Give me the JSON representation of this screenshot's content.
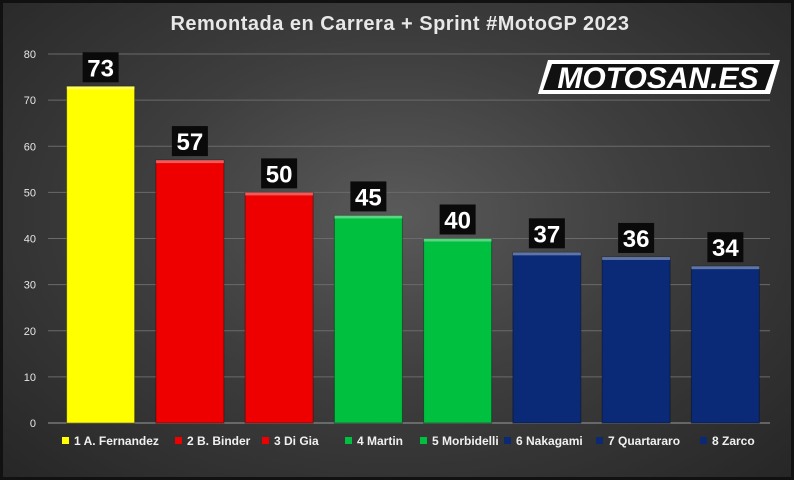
{
  "chart_data": {
    "type": "bar",
    "title": "Remontada en Carrera + Sprint #MotoGP 2023",
    "categories": [
      "1 A. Fernandez",
      "2 B. Binder",
      "3 Di Gia",
      "4 Martin",
      "5 Morbidelli",
      "6 Nakagami",
      "7 Quartararo",
      "8 Zarco"
    ],
    "values": [
      73,
      57,
      50,
      45,
      40,
      37,
      36,
      34
    ],
    "colors": [
      "#ffff00",
      "#ee0000",
      "#ee0000",
      "#00c040",
      "#00c040",
      "#0a2a78",
      "#0a2a78",
      "#0a2a78"
    ],
    "ylim": [
      0,
      80
    ],
    "yticks": [
      0,
      10,
      20,
      30,
      40,
      50,
      60,
      70,
      80
    ],
    "grid": true,
    "legend": "bottom",
    "xlabel": "",
    "ylabel": ""
  },
  "logo": {
    "text": "MOTOSAN.ES"
  }
}
